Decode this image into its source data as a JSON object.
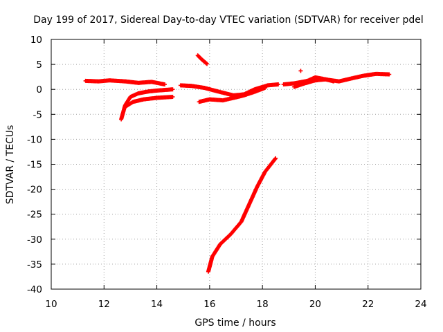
{
  "chart_data": {
    "type": "scatter",
    "title": "Day 199 of 2017, Sidereal Day-to-day VTEC variation (SDTVAR) for receiver pdel",
    "xlabel": "GPS time / hours",
    "ylabel": "SDTVAR / TECUs",
    "xlim": [
      10,
      24
    ],
    "ylim": [
      -40,
      10
    ],
    "x_ticks": [
      10,
      12,
      14,
      16,
      18,
      20,
      22,
      24
    ],
    "x_tick_labels": [
      "10",
      "12",
      "14",
      "16",
      "18",
      "20",
      "22",
      "24"
    ],
    "y_ticks": [
      10,
      5,
      0,
      -5,
      -10,
      -15,
      -20,
      -25,
      -30,
      -35,
      -40
    ],
    "y_tick_labels": [
      "10",
      "5",
      "0",
      "-5",
      "-10",
      "-15",
      "-20",
      "-25",
      "-30",
      "-35",
      "-40"
    ],
    "grid": true,
    "marker": "+",
    "series": [
      {
        "color": "#ff0000",
        "x": [
          11.3,
          11.8,
          12.2,
          12.8,
          13.3,
          13.8,
          14.3
        ],
        "y": [
          1.7,
          1.6,
          1.8,
          1.6,
          1.3,
          1.5,
          1.0
        ]
      },
      {
        "color": "#ff0000",
        "x": [
          12.65,
          12.8,
          13.0,
          13.3,
          13.7,
          14.1,
          14.6
        ],
        "y": [
          -6.0,
          -3.2,
          -1.5,
          -0.8,
          -0.4,
          -0.2,
          0.0
        ]
      },
      {
        "color": "#ff0000",
        "x": [
          12.8,
          13.1,
          13.5,
          14.0,
          14.6
        ],
        "y": [
          -3.5,
          -2.5,
          -2.0,
          -1.7,
          -1.5
        ]
      },
      {
        "color": "#ff0000",
        "x": [
          14.9,
          15.3,
          15.8,
          16.3,
          16.9,
          17.3,
          17.7,
          18.2,
          18.6
        ],
        "y": [
          0.8,
          0.7,
          0.3,
          -0.4,
          -1.2,
          -1.0,
          0.0,
          0.8,
          1.0
        ]
      },
      {
        "color": "#ff0000",
        "x": [
          15.6,
          16.0,
          16.5,
          17.0,
          17.3,
          17.7,
          18.1
        ],
        "y": [
          -2.5,
          -2.0,
          -2.2,
          -1.6,
          -1.2,
          -0.5,
          0.3
        ]
      },
      {
        "color": "#ff0000",
        "x": [
          15.55,
          15.7,
          15.9
        ],
        "y": [
          6.8,
          6.0,
          5.1
        ]
      },
      {
        "color": "#ff0000",
        "x": [
          18.8,
          19.2,
          19.7,
          20.0,
          20.5,
          20.9,
          21.3,
          21.8,
          22.3,
          22.8
        ],
        "y": [
          1.0,
          1.2,
          1.7,
          2.4,
          1.9,
          1.6,
          2.1,
          2.7,
          3.1,
          3.0
        ]
      },
      {
        "color": "#ff0000",
        "x": [
          19.2,
          19.6,
          20.0,
          20.4,
          20.7
        ],
        "y": [
          0.5,
          1.2,
          1.8,
          2.0,
          1.6
        ]
      },
      {
        "color": "#ff0000",
        "x": [
          19.45
        ],
        "y": [
          3.7
        ]
      },
      {
        "color": "#ff0000",
        "x": [
          15.95,
          16.1,
          16.4,
          16.8,
          17.2,
          17.5,
          17.8,
          18.1,
          18.5
        ],
        "y": [
          -36.5,
          -33.5,
          -31.0,
          -29.0,
          -26.5,
          -23.0,
          -19.5,
          -16.5,
          -13.8
        ]
      }
    ]
  }
}
